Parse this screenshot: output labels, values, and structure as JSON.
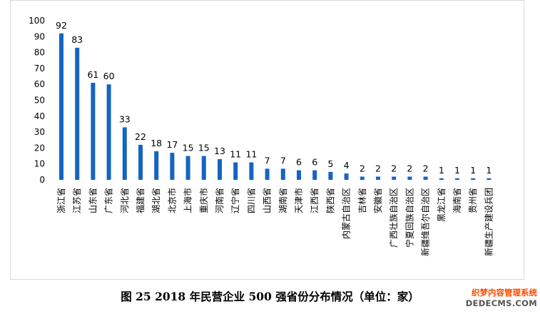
{
  "chart_data": {
    "type": "bar",
    "categories": [
      "浙江省",
      "江苏省",
      "山东省",
      "广东省",
      "河北省",
      "福建省",
      "湖北省",
      "北京市",
      "上海市",
      "重庆市",
      "河南省",
      "辽宁省",
      "四川省",
      "山西省",
      "湖南省",
      "天津市",
      "江西省",
      "陕西省",
      "内蒙古自治区",
      "吉林省",
      "安徽省",
      "广西壮族自治区",
      "宁夏回族自治区",
      "新疆维吾尔自治区",
      "黑龙江省",
      "海南省",
      "贵州省",
      "新疆生产建设兵团"
    ],
    "values": [
      92,
      83,
      61,
      60,
      33,
      22,
      18,
      17,
      15,
      15,
      13,
      11,
      11,
      7,
      7,
      6,
      6,
      5,
      4,
      2,
      2,
      2,
      2,
      2,
      1,
      1,
      1,
      1
    ],
    "yticks": [
      "0",
      "10",
      "20",
      "30",
      "40",
      "50",
      "60",
      "70",
      "80",
      "90",
      "100"
    ],
    "ylim": [
      0,
      100
    ],
    "bar_color": "#1565c0",
    "title": "图 25  2018 年民营企业 500 强省份分布情况（单位：家）",
    "grid": false
  },
  "watermark": {
    "line1": "织梦内容管理系统",
    "line2": "DEDECMS.COM"
  }
}
